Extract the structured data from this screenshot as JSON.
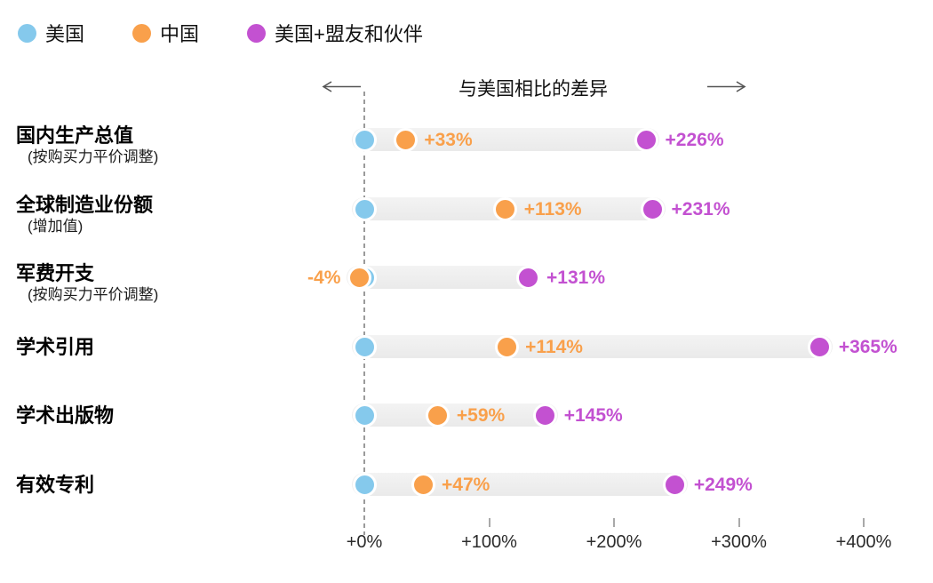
{
  "legend": {
    "items": [
      {
        "label": "美国",
        "color": "#85C9EC"
      },
      {
        "label": "中国",
        "color": "#F9A04B"
      },
      {
        "label": "美国+盟友和伙伴",
        "color": "#C351D1"
      }
    ]
  },
  "header": {
    "title": "与美国相比的差异"
  },
  "chart_data": {
    "type": "scatter",
    "subtype": "dot-plot-dumbbell",
    "title": "与美国相比的差异",
    "legend_position": "top-left",
    "grid": false,
    "bar_color": "#EFEFEF",
    "zero_line": "dashed",
    "categories": [
      {
        "label": "国内生产总值",
        "sublabel": "(按购买力平价调整)"
      },
      {
        "label": "全球制造业份额",
        "sublabel": "(增加值)"
      },
      {
        "label": "军费开支",
        "sublabel": "(按购买力平价调整)"
      },
      {
        "label": "学术引用",
        "sublabel": ""
      },
      {
        "label": "学术出版物",
        "sublabel": ""
      },
      {
        "label": "有效专利",
        "sublabel": ""
      }
    ],
    "series": [
      {
        "name": "美国",
        "color": "#85C9EC",
        "values": [
          0,
          0,
          0,
          0,
          0,
          0
        ],
        "labels": [
          "",
          "",
          "",
          "",
          "",
          ""
        ]
      },
      {
        "name": "中国",
        "color": "#F9A04B",
        "values": [
          33,
          113,
          -4,
          114,
          59,
          47
        ],
        "labels": [
          "+33%",
          "+113%",
          "-4%",
          "+114%",
          "+59%",
          "+47%"
        ]
      },
      {
        "name": "美国+盟友和伙伴",
        "color": "#C351D1",
        "values": [
          226,
          231,
          131,
          365,
          145,
          249
        ],
        "labels": [
          "+226%",
          "+231%",
          "+131%",
          "+365%",
          "+145%",
          "+249%"
        ]
      }
    ],
    "x_ticks": [
      {
        "value": 0,
        "label": "+0%"
      },
      {
        "value": 100,
        "label": "+100%"
      },
      {
        "value": 200,
        "label": "+200%"
      },
      {
        "value": 300,
        "label": "+300%"
      },
      {
        "value": 400,
        "label": "+400%"
      }
    ],
    "xlim": [
      -45,
      455
    ],
    "unit": "%"
  }
}
